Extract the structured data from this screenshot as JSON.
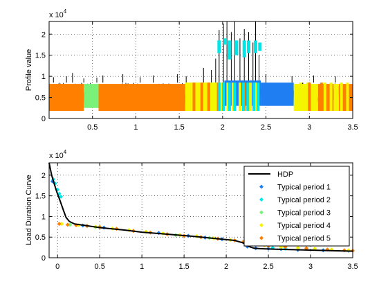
{
  "figure": {
    "background": "#ffffff"
  },
  "chart_data": [
    {
      "type": "line",
      "ylabel": "Profile value",
      "xlabel": "",
      "y_multiplier_base": "x 10",
      "y_multiplier_exp": "4",
      "xlim": [
        0,
        3.5
      ],
      "ylim": [
        0,
        2.3
      ],
      "xticks": [
        "0.5",
        "1",
        "1.5",
        "2",
        "2.5",
        "3",
        "3.5"
      ],
      "xtick_values": [
        0.5,
        1,
        1.5,
        2,
        2.5,
        3,
        3.5
      ],
      "yticks": [
        "0",
        "0.5",
        "1",
        "1.5",
        "2"
      ],
      "ytick_values": [
        0,
        0.5,
        1,
        1.5,
        2
      ],
      "grid": true,
      "series": [
        {
          "color": "#000000",
          "baseline_band": [
            0.3,
            0.85
          ],
          "spikes": [
            {
              "x": 0.05,
              "y": 0.98
            },
            {
              "x": 0.2,
              "y": 1.0
            },
            {
              "x": 0.27,
              "y": 1.08
            },
            {
              "x": 0.4,
              "y": 0.95
            },
            {
              "x": 0.55,
              "y": 0.97
            },
            {
              "x": 0.62,
              "y": 1.02
            },
            {
              "x": 0.85,
              "y": 1.05
            },
            {
              "x": 1.05,
              "y": 0.98
            },
            {
              "x": 1.2,
              "y": 1.02
            },
            {
              "x": 1.48,
              "y": 1.05
            },
            {
              "x": 1.58,
              "y": 1.0
            },
            {
              "x": 1.78,
              "y": 1.2
            },
            {
              "x": 1.87,
              "y": 1.15
            },
            {
              "x": 1.92,
              "y": 1.42
            },
            {
              "x": 1.96,
              "y": 2.1
            },
            {
              "x": 2.01,
              "y": 2.25
            },
            {
              "x": 2.05,
              "y": 2.3
            },
            {
              "x": 2.1,
              "y": 2.05
            },
            {
              "x": 2.14,
              "y": 2.3
            },
            {
              "x": 2.2,
              "y": 1.9
            },
            {
              "x": 2.25,
              "y": 2.12
            },
            {
              "x": 2.3,
              "y": 2.05
            },
            {
              "x": 2.35,
              "y": 1.8
            },
            {
              "x": 2.38,
              "y": 2.3
            },
            {
              "x": 2.42,
              "y": 1.5
            },
            {
              "x": 2.5,
              "y": 1.05
            },
            {
              "x": 2.8,
              "y": 1.0
            },
            {
              "x": 3.05,
              "y": 1.02
            },
            {
              "x": 3.3,
              "y": 1.0
            }
          ]
        }
      ],
      "period_blocks": [
        {
          "period": 5,
          "x_start": 0.0,
          "x_end": 0.4,
          "y_low": 0.18,
          "y_high": 0.82
        },
        {
          "period": 3,
          "x_start": 0.4,
          "x_end": 0.57,
          "y_low": 0.25,
          "y_high": 0.82
        },
        {
          "period": 5,
          "x_start": 0.57,
          "x_end": 1.57,
          "y_low": 0.18,
          "y_high": 0.82
        },
        {
          "period": 4,
          "x_start": 1.57,
          "x_end": 2.02,
          "y_low": 0.18,
          "y_high": 0.85
        },
        {
          "period": 1,
          "x_start": 2.02,
          "x_end": 2.44,
          "y_low": 0.3,
          "y_high": 0.9
        },
        {
          "period": 1,
          "x_start": 2.44,
          "x_end": 2.82,
          "y_low": 0.3,
          "y_high": 0.85
        },
        {
          "period": 4,
          "x_start": 2.82,
          "x_end": 3.1,
          "y_low": 0.18,
          "y_high": 0.82
        },
        {
          "period": 5,
          "x_start": 3.1,
          "x_end": 3.28,
          "y_low": 0.18,
          "y_high": 0.82
        },
        {
          "period": 4,
          "x_start": 3.28,
          "x_end": 3.34,
          "y_low": 0.18,
          "y_high": 0.82
        },
        {
          "period": 5,
          "x_start": 3.34,
          "x_end": 3.5,
          "y_low": 0.18,
          "y_high": 0.82
        }
      ],
      "period_stripes": [
        {
          "period": 4,
          "x": [
            1.63,
            1.72,
            1.8,
            1.86,
            1.92,
            2.06,
            2.12,
            2.2,
            2.32,
            2.38,
            2.9,
            2.98,
            3.18,
            3.25,
            3.37,
            3.44
          ]
        },
        {
          "period": 5,
          "x": [
            1.67,
            1.76,
            1.84,
            1.95,
            2.25,
            3.0,
            3.14
          ]
        },
        {
          "period": 2,
          "x": [
            1.96,
            2.01,
            2.08,
            2.14,
            2.24,
            2.29,
            2.36,
            2.41
          ]
        }
      ],
      "period_peaks": [
        {
          "period": 2,
          "x": 1.96,
          "y_low": 1.55,
          "y_high": 1.85
        },
        {
          "period": 2,
          "x": 2.03,
          "y_low": 1.75,
          "y_high": 1.9
        },
        {
          "period": 2,
          "x": 2.08,
          "y_low": 1.4,
          "y_high": 1.85
        },
        {
          "period": 2,
          "x": 2.16,
          "y_low": 1.5,
          "y_high": 1.85
        },
        {
          "period": 2,
          "x": 2.25,
          "y_low": 1.45,
          "y_high": 1.85
        },
        {
          "period": 2,
          "x": 2.3,
          "y_low": 1.55,
          "y_high": 1.85
        },
        {
          "period": 2,
          "x": 2.38,
          "y_low": 1.55,
          "y_high": 1.85
        },
        {
          "period": 2,
          "x": 2.43,
          "y_low": 1.6,
          "y_high": 1.8
        }
      ]
    },
    {
      "type": "line",
      "ylabel": "Load Duration Curve",
      "xlabel": "",
      "y_multiplier_base": "x 10",
      "y_multiplier_exp": "4",
      "xlim": [
        -0.1,
        3.5
      ],
      "ylim": [
        0,
        2.3
      ],
      "xticks": [
        "0",
        "0.5",
        "1",
        "1.5",
        "2",
        "2.5",
        "3",
        "3.5"
      ],
      "xtick_values": [
        0,
        0.5,
        1,
        1.5,
        2,
        2.5,
        3,
        3.5
      ],
      "yticks": [
        "0",
        "0.5",
        "1",
        "1.5",
        "2"
      ],
      "ytick_values": [
        0,
        0.5,
        1,
        1.5,
        2
      ],
      "grid": true,
      "legend_position": "top-right",
      "series": [
        {
          "name": "HDP",
          "color": "#000000",
          "x": [
            -0.1,
            -0.07,
            -0.04,
            -0.01,
            0.03,
            0.07,
            0.1,
            0.14,
            0.2,
            0.3,
            0.5,
            0.8,
            1.0,
            1.3,
            1.6,
            1.9,
            2.1,
            2.2,
            2.27,
            2.33,
            2.4,
            2.6,
            2.8,
            3.0,
            3.2,
            3.4,
            3.5
          ],
          "y": [
            2.3,
            2.0,
            1.8,
            1.6,
            1.38,
            1.15,
            0.98,
            0.88,
            0.82,
            0.79,
            0.73,
            0.67,
            0.62,
            0.57,
            0.52,
            0.46,
            0.42,
            0.36,
            0.27,
            0.23,
            0.22,
            0.205,
            0.195,
            0.185,
            0.175,
            0.165,
            0.16
          ]
        },
        {
          "name": "Typical period 1",
          "color": "#1f7ff2",
          "x": [
            -0.06,
            0.3,
            0.55,
            1.2,
            1.55,
            1.75,
            1.95,
            2.25,
            2.35,
            2.5,
            2.65,
            2.85,
            3.15,
            3.45
          ],
          "y": [
            1.85,
            0.78,
            0.73,
            0.6,
            0.53,
            0.49,
            0.45,
            0.27,
            0.23,
            0.22,
            0.21,
            0.19,
            0.18,
            0.17
          ]
        },
        {
          "name": "Typical period 2",
          "color": "#00e5e5",
          "x": [
            -0.05,
            -0.03,
            0.0,
            0.02,
            0.04,
            0.35,
            0.45,
            2.55,
            2.7
          ],
          "y": [
            1.9,
            1.8,
            1.65,
            1.55,
            1.48,
            0.77,
            0.74,
            0.24,
            0.22
          ]
        },
        {
          "name": "Typical period 3",
          "color": "#7af27a",
          "x": [
            0.15,
            0.5,
            0.9,
            1.4,
            1.8,
            2.2
          ],
          "y": [
            0.8,
            0.75,
            0.65,
            0.55,
            0.48,
            0.38
          ]
        },
        {
          "name": "Typical period 4",
          "color": "#f5f500",
          "x": [
            0.05,
            0.25,
            0.45,
            0.65,
            0.85,
            1.05,
            1.25,
            1.45,
            1.65,
            1.85,
            2.05,
            2.25,
            2.45,
            2.65,
            2.85,
            3.05,
            3.25,
            3.45
          ],
          "y": [
            0.82,
            0.79,
            0.75,
            0.71,
            0.67,
            0.63,
            0.59,
            0.55,
            0.52,
            0.47,
            0.43,
            0.34,
            0.3,
            0.26,
            0.24,
            0.22,
            0.2,
            0.18
          ]
        },
        {
          "name": "Typical period 5",
          "color": "#ff7f00",
          "x": [
            0.02,
            0.12,
            0.22,
            0.35,
            0.5,
            0.7,
            0.9,
            1.1,
            1.3,
            1.5,
            1.7,
            1.9,
            2.1,
            2.2,
            2.3,
            2.5,
            2.7,
            2.95,
            3.2,
            3.4,
            3.5
          ],
          "y": [
            0.82,
            0.8,
            0.79,
            0.77,
            0.74,
            0.7,
            0.65,
            0.61,
            0.57,
            0.53,
            0.5,
            0.46,
            0.42,
            0.38,
            0.33,
            0.29,
            0.26,
            0.23,
            0.2,
            0.18,
            0.17
          ]
        }
      ]
    }
  ]
}
